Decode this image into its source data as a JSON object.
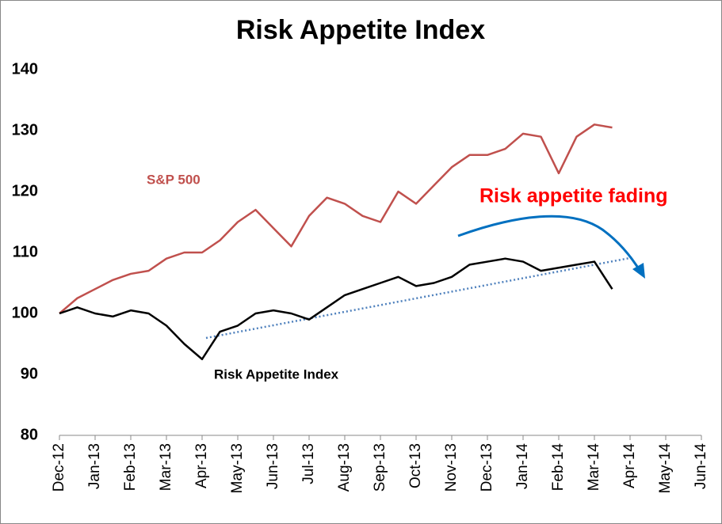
{
  "chart_data": {
    "type": "line",
    "title": "Risk Appetite Index",
    "categories": [
      "Dec-12",
      null,
      "Jan-13",
      null,
      "Feb-13",
      null,
      "Mar-13",
      null,
      "Apr-13",
      null,
      "May-13",
      null,
      "Jun-13",
      null,
      "Jul-13",
      null,
      "Aug-13",
      null,
      "Sep-13",
      null,
      "Oct-13",
      null,
      "Nov-13",
      null,
      "Dec-13",
      null,
      "Jan-14",
      null,
      "Feb-14",
      null,
      "Mar-14",
      null,
      "Apr-14",
      null,
      "May-14",
      null,
      "Jun-14"
    ],
    "series": [
      {
        "name": "S&P 500",
        "color": "#c0504d",
        "values": [
          100,
          102.5,
          104,
          105.5,
          106.5,
          107,
          109,
          110,
          110,
          112,
          115,
          117,
          114,
          111,
          116,
          119,
          118,
          116,
          115,
          120,
          118,
          121,
          124,
          126,
          126,
          127,
          129.5,
          129,
          123,
          129,
          131,
          130.5,
          null,
          null,
          null,
          null,
          null
        ]
      },
      {
        "name": "Risk Appetite Index",
        "color": "#000000",
        "values": [
          100,
          101,
          100,
          99.5,
          100.5,
          100,
          98,
          95,
          92.5,
          97,
          98,
          100,
          100.5,
          100,
          99,
          101,
          103,
          104,
          105,
          106,
          104.5,
          105,
          106,
          108,
          108.5,
          109,
          108.5,
          107,
          107.5,
          108,
          108.5,
          104,
          null,
          null,
          null,
          null,
          null
        ]
      }
    ],
    "annotation": "Risk appetite fading",
    "ylim": [
      80,
      140
    ],
    "yticks": [
      80,
      90,
      100,
      110,
      120,
      130,
      140
    ],
    "grid": false
  }
}
